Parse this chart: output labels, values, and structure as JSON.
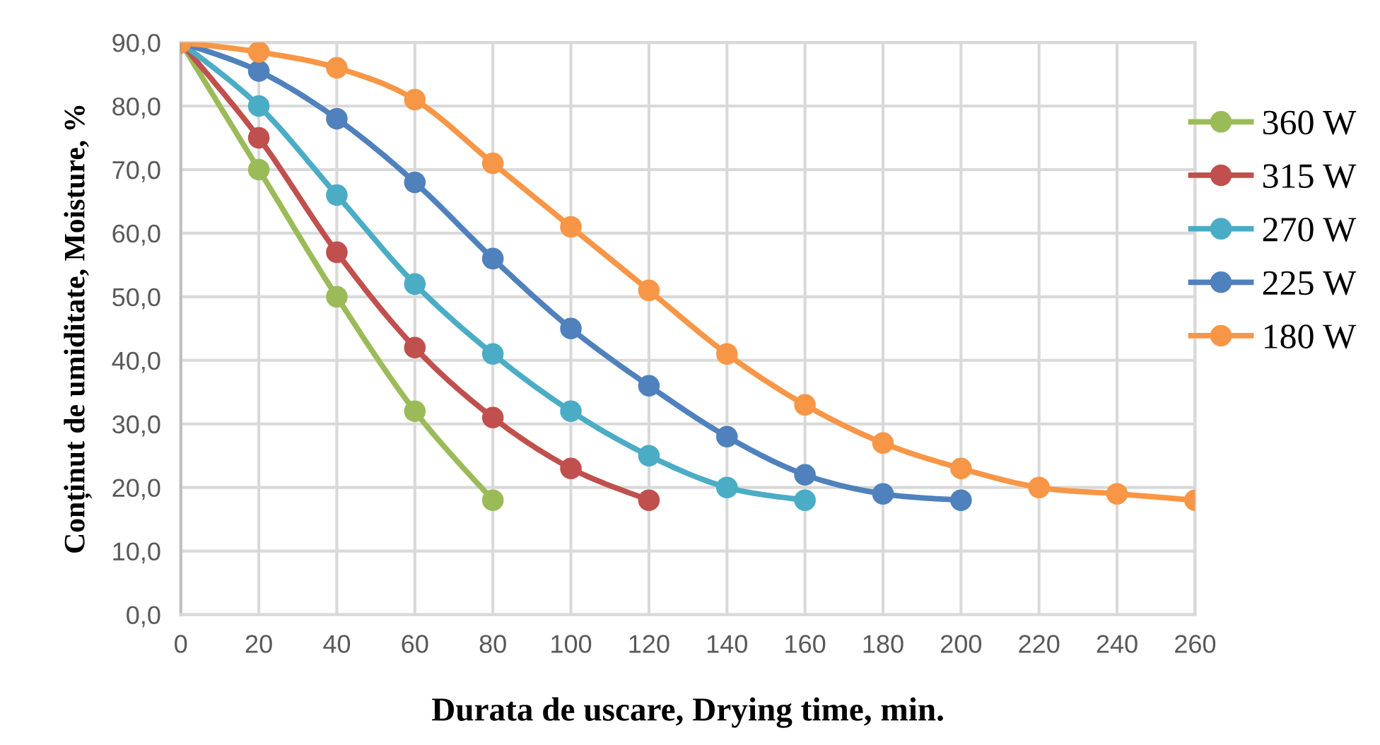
{
  "chart_data": {
    "type": "line",
    "xlabel": "Durata de uscare, Drying time, min.",
    "ylabel": "Conținut de umiditate, Moisture, %",
    "xlim": [
      0,
      260
    ],
    "xticks": [
      0,
      20,
      40,
      60,
      80,
      100,
      120,
      140,
      160,
      180,
      200,
      220,
      240,
      260
    ],
    "ylim": [
      0,
      90
    ],
    "yticks": [
      {
        "value": 0,
        "label": "0,0"
      },
      {
        "value": 10,
        "label": "10,0"
      },
      {
        "value": 20,
        "label": "20,0"
      },
      {
        "value": 30,
        "label": "30,0"
      },
      {
        "value": 40,
        "label": "40,0"
      },
      {
        "value": 50,
        "label": "50,0"
      },
      {
        "value": 60,
        "label": "60,0"
      },
      {
        "value": 70,
        "label": "70,0"
      },
      {
        "value": 80,
        "label": "80,0"
      },
      {
        "value": 90,
        "label": "90,0"
      }
    ],
    "grid": true,
    "legend": "right",
    "marker": "circle",
    "line_style": "solid",
    "series": [
      {
        "name": "360 W",
        "color": "#9bbb59",
        "x": [
          0,
          20,
          40,
          60,
          80
        ],
        "values": [
          90,
          70,
          50,
          32,
          18
        ]
      },
      {
        "name": "315 W",
        "color": "#c0504d",
        "x": [
          0,
          20,
          40,
          60,
          80,
          100,
          120
        ],
        "values": [
          90,
          75,
          57,
          42,
          31,
          23,
          18
        ]
      },
      {
        "name": "270 W",
        "color": "#4bacc6",
        "x": [
          0,
          20,
          40,
          60,
          80,
          100,
          120,
          140,
          160
        ],
        "values": [
          90,
          80,
          66,
          52,
          41,
          32,
          25,
          20,
          18
        ]
      },
      {
        "name": "225 W",
        "color": "#4f81bd",
        "x": [
          0,
          20,
          40,
          60,
          80,
          100,
          120,
          140,
          160,
          180,
          200
        ],
        "values": [
          90,
          85.5,
          78,
          68,
          56,
          45,
          36,
          28,
          22,
          19,
          18
        ]
      },
      {
        "name": "180 W",
        "color": "#f79646",
        "x": [
          0,
          20,
          40,
          60,
          80,
          100,
          120,
          140,
          160,
          180,
          200,
          220,
          240,
          260
        ],
        "values": [
          90,
          88.5,
          86,
          81,
          71,
          61,
          51,
          41,
          33,
          27,
          23,
          20,
          19,
          18
        ]
      }
    ]
  }
}
